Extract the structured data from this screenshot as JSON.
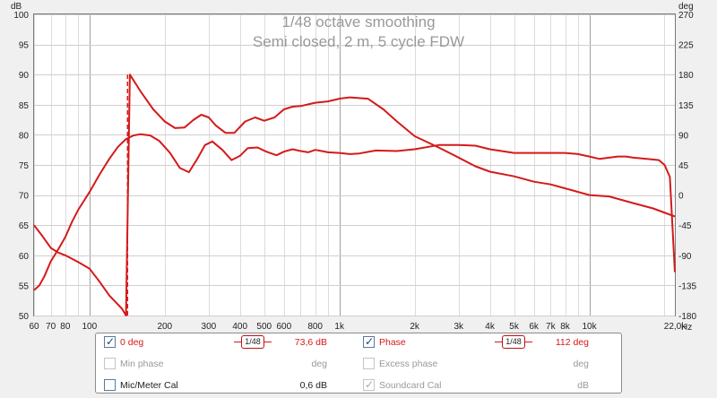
{
  "chart_data": {
    "type": "line",
    "title": "1/48 octave smoothing",
    "subtitle": "Semi closed, 2 m, 5 cycle FDW",
    "x_scale": "log",
    "xlim": [
      60,
      22000
    ],
    "x_ticks": [
      {
        "value": 60,
        "label": "60"
      },
      {
        "value": 70,
        "label": "70"
      },
      {
        "value": 80,
        "label": "80"
      },
      {
        "value": 100,
        "label": "100"
      },
      {
        "value": 200,
        "label": "200"
      },
      {
        "value": 300,
        "label": "300"
      },
      {
        "value": 400,
        "label": "400"
      },
      {
        "value": 500,
        "label": "500"
      },
      {
        "value": 600,
        "label": "600"
      },
      {
        "value": 800,
        "label": "800"
      },
      {
        "value": 1000,
        "label": "1k"
      },
      {
        "value": 2000,
        "label": "2k"
      },
      {
        "value": 3000,
        "label": "3k"
      },
      {
        "value": 4000,
        "label": "4k"
      },
      {
        "value": 5000,
        "label": "5k"
      },
      {
        "value": 6000,
        "label": "6k"
      },
      {
        "value": 7000,
        "label": "7k"
      },
      {
        "value": 8000,
        "label": "8k"
      },
      {
        "value": 10000,
        "label": "10k"
      },
      {
        "value": 22000,
        "label": "22,0k"
      }
    ],
    "x_unit": "Hz",
    "y_left": {
      "unit": "dB",
      "lim": [
        50,
        100
      ],
      "ticks": [
        50,
        55,
        60,
        65,
        70,
        75,
        80,
        85,
        90,
        95,
        100
      ]
    },
    "y_right": {
      "unit": "deg",
      "lim": [
        -180,
        270
      ],
      "ticks": [
        -180,
        -135,
        -90,
        -45,
        0,
        45,
        90,
        135,
        180,
        225,
        270
      ]
    },
    "grid": true,
    "series": [
      {
        "name": "0 deg",
        "axis": "left",
        "color": "#d41a1a",
        "style": "solid",
        "x": [
          60,
          63,
          66,
          70,
          75,
          80,
          85,
          90,
          100,
          110,
          120,
          130,
          140,
          150,
          160,
          175,
          190,
          210,
          230,
          250,
          270,
          290,
          310,
          340,
          370,
          400,
          430,
          470,
          510,
          560,
          600,
          650,
          700,
          750,
          800,
          850,
          900,
          1000,
          1100,
          1200,
          1400,
          1700,
          2000,
          2500,
          3000,
          3500,
          4000,
          5000,
          6000,
          7000,
          8000,
          9000,
          10000,
          11000,
          12000,
          13000,
          14000,
          15000,
          17000,
          19000,
          20000,
          21000,
          22000
        ],
        "y": [
          54.2,
          55,
          56.5,
          59,
          61,
          63,
          65.5,
          67.5,
          70.5,
          73.5,
          76,
          78,
          79.3,
          79.9,
          80.1,
          79.9,
          79,
          77,
          74.5,
          73.8,
          76,
          78.3,
          78.9,
          77.5,
          75.8,
          76.5,
          77.8,
          77.9,
          77.2,
          76.6,
          77.2,
          77.6,
          77.3,
          77.1,
          77.5,
          77.3,
          77.1,
          77,
          76.8,
          76.9,
          77.4,
          77.3,
          77.6,
          78.3,
          78.3,
          78.2,
          77.6,
          77,
          77,
          77,
          77,
          76.8,
          76.4,
          76,
          76.2,
          76.4,
          76.4,
          76.2,
          76,
          75.8,
          75,
          73,
          57.2
        ]
      },
      {
        "name": "Phase",
        "axis": "right",
        "color": "#d41a1a",
        "style": "solid",
        "x": [
          60,
          65,
          70,
          75,
          80,
          90,
          100,
          110,
          120,
          135,
          140,
          145,
          160,
          180,
          200,
          220,
          240,
          260,
          280,
          300,
          320,
          350,
          380,
          420,
          460,
          500,
          550,
          600,
          650,
          700,
          800,
          900,
          1000,
          1100,
          1300,
          1500,
          1700,
          2000,
          2500,
          3000,
          3500,
          4000,
          5000,
          6000,
          7000,
          8000,
          10000,
          12000,
          15000,
          18000,
          22000
        ],
        "y": [
          -45,
          -62,
          -79,
          -86,
          -90,
          -100,
          -110,
          -130,
          -150,
          -170,
          -180,
          180,
          155,
          128,
          110,
          100,
          101,
          112,
          120,
          116,
          104,
          93,
          93,
          110,
          116,
          111,
          116,
          128,
          132,
          133,
          138,
          140,
          144,
          146,
          144,
          128,
          110,
          88,
          71,
          56,
          43,
          35,
          28,
          20,
          16,
          10,
          0,
          -2,
          -12,
          -20,
          -32
        ]
      },
      {
        "name": "phase-wrap-connector",
        "axis": "right",
        "color": "#d41a1a",
        "style": "dashed",
        "x": [
          142,
          142
        ],
        "y": [
          -180,
          180
        ]
      }
    ]
  },
  "legend": {
    "rows": [
      {
        "checked": true,
        "enabled": true,
        "label": "0 deg",
        "color": "red",
        "smoothing": "1/48",
        "value": "73,6 dB",
        "right": {
          "checked": true,
          "enabled": true,
          "label": "Phase",
          "color": "red",
          "smoothing": "1/48",
          "value": "112 deg"
        }
      },
      {
        "checked": false,
        "enabled": false,
        "label": "Min phase",
        "color": "grey",
        "value": "deg",
        "right": {
          "checked": false,
          "enabled": false,
          "label": "Excess phase",
          "color": "grey",
          "value": "deg"
        }
      },
      {
        "checked": false,
        "enabled": true,
        "label": "Mic/Meter Cal",
        "color": "black",
        "value": "0,6 dB",
        "right": {
          "checked": true,
          "enabled": false,
          "label": "Soundcard Cal",
          "color": "grey",
          "value": "dB"
        }
      }
    ]
  }
}
